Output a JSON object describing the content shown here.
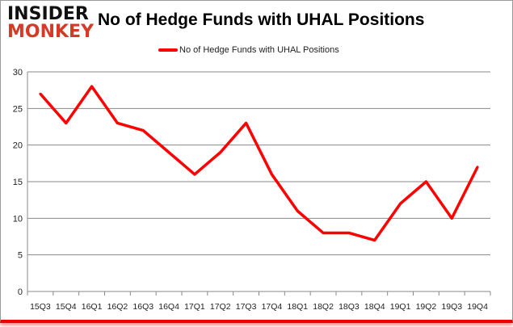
{
  "logo": {
    "line1": "INSIDER",
    "line2": "MONKEY"
  },
  "chart_data": {
    "type": "line",
    "title": "No of Hedge Funds with UHAL Positions",
    "categories": [
      "15Q3",
      "15Q4",
      "16Q1",
      "16Q2",
      "16Q3",
      "16Q4",
      "17Q1",
      "17Q2",
      "17Q3",
      "17Q4",
      "18Q1",
      "18Q2",
      "18Q3",
      "18Q4",
      "19Q1",
      "19Q2",
      "19Q3",
      "19Q4"
    ],
    "series": [
      {
        "name": "No of Hedge Funds with UHAL Positions",
        "values": [
          27,
          23,
          28,
          23,
          22,
          19,
          16,
          19,
          23,
          16,
          11,
          8,
          8,
          7,
          12,
          15,
          10,
          17
        ],
        "color": "#ff0000"
      }
    ],
    "ylim": [
      0,
      30
    ],
    "yticks": [
      0,
      5,
      10,
      15,
      20,
      25,
      30
    ],
    "grid": true,
    "legend": "top",
    "xlabel": "",
    "ylabel": ""
  }
}
